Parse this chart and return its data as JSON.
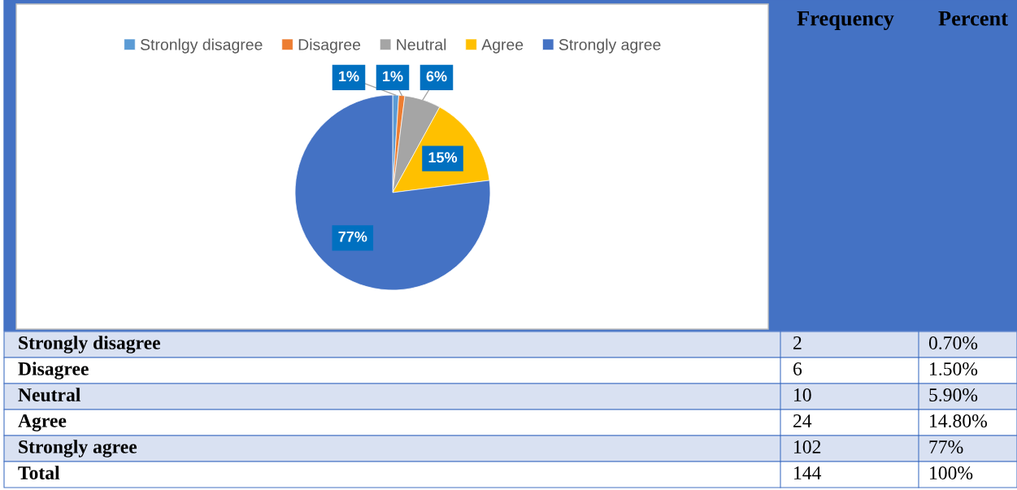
{
  "chart_data": [
    {
      "type": "pie",
      "categories": [
        "Stronlgy disagree",
        "Disagree",
        "Neutral",
        "Agree",
        "Strongly agree"
      ],
      "values": [
        1,
        1,
        6,
        15,
        77
      ],
      "colors": [
        "#5b9bd5",
        "#ed7d31",
        "#a5a5a5",
        "#ffc000",
        "#4472c4"
      ],
      "value_labels": [
        "1%",
        "1%",
        "6%",
        "15%",
        "77%"
      ],
      "legend": "top"
    },
    {
      "type": "other",
      "annotations": [
        "Frequency",
        "Percent",
        "Strongly disagree",
        "2",
        "0.70%",
        "Disagree",
        "6",
        "1.50%",
        "Neutral",
        "10",
        "5.90%",
        "Agree",
        "24",
        "14.80%",
        "Strongly agree",
        "102",
        "77%",
        "Total",
        "144",
        "100%"
      ]
    }
  ]
}
